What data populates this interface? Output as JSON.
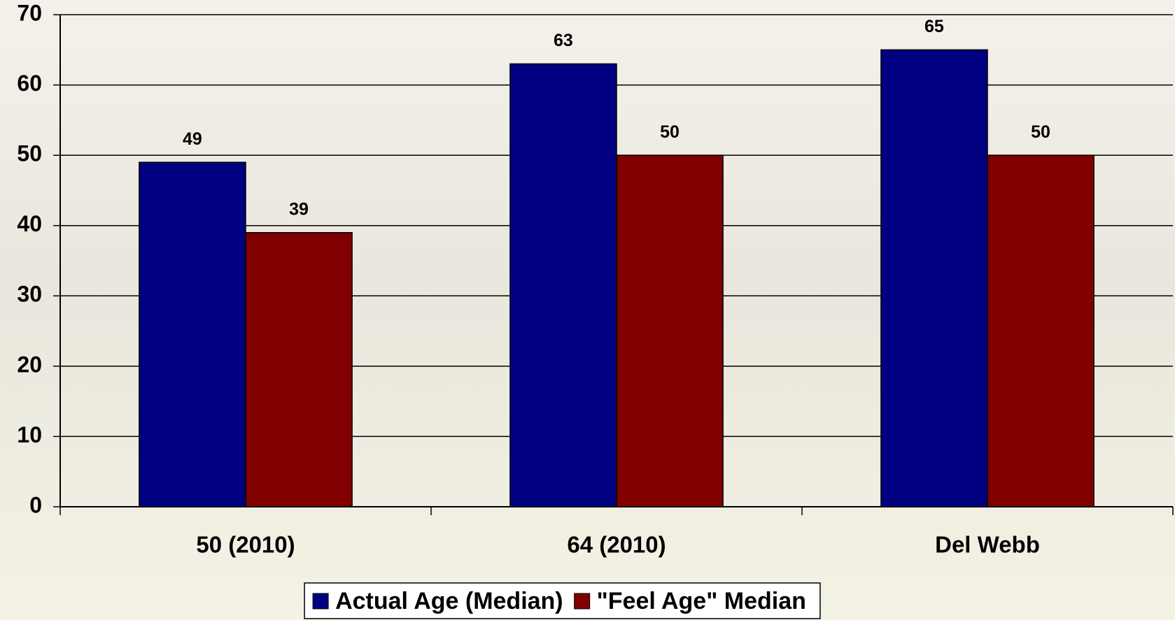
{
  "chart_data": {
    "type": "bar",
    "categories": [
      "50 (2010)",
      "64 (2010)",
      "Del Webb"
    ],
    "series": [
      {
        "name": "Actual Age (Median)",
        "color": "#000080",
        "values": [
          49,
          63,
          65
        ]
      },
      {
        "name": "\"Feel Age\" Median",
        "color": "#800000",
        "values": [
          39,
          50,
          50
        ]
      }
    ],
    "ylim": [
      0,
      70
    ],
    "yticks": [
      0,
      10,
      20,
      30,
      40,
      50,
      60,
      70
    ],
    "grid": true,
    "legend": "bottom"
  }
}
